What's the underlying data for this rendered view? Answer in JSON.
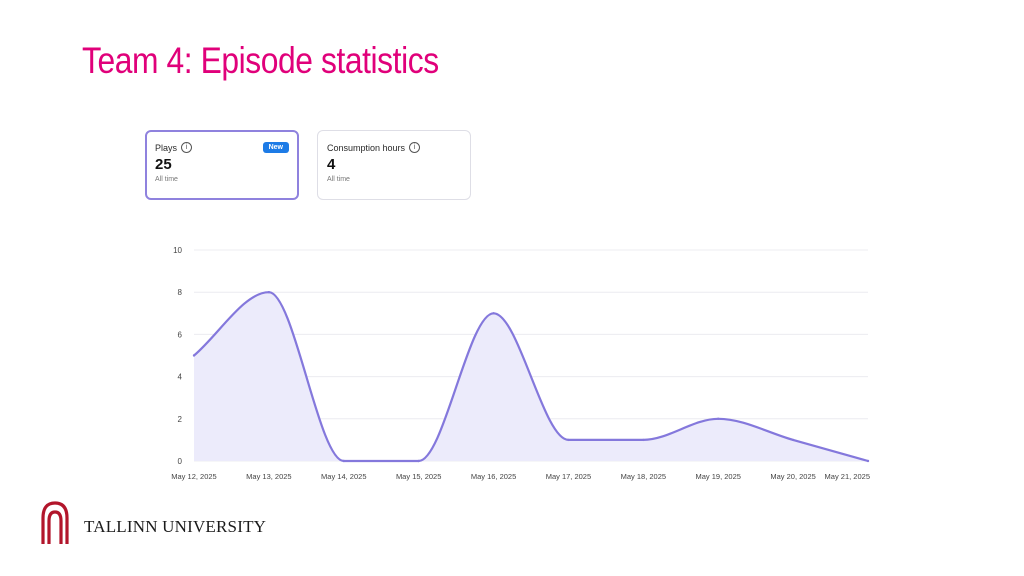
{
  "slide": {
    "title": "Team 4: Episode statistics"
  },
  "cards": [
    {
      "label": "Plays",
      "value": "25",
      "sub": "All time",
      "badge": "New"
    },
    {
      "label": "Consumption hours",
      "value": "4",
      "sub": "All time"
    }
  ],
  "logo": {
    "text": "TALLINN UNIVERSITY",
    "color": "#b2152b"
  },
  "chart_data": {
    "type": "area",
    "title": "",
    "xlabel": "",
    "ylabel": "",
    "categories": [
      "May 12, 2025",
      "May 13, 2025",
      "May 14, 2025",
      "May 15, 2025",
      "May 16, 2025",
      "May 17, 2025",
      "May 18, 2025",
      "May 19, 2025",
      "May 20, 2025",
      "May 21, 2025"
    ],
    "values": [
      5,
      8,
      0,
      0,
      7,
      1,
      1,
      2,
      1,
      0
    ],
    "yticks": [
      "0",
      "2",
      "4",
      "6",
      "8",
      "10"
    ],
    "ylim": [
      0,
      10
    ],
    "grid": true,
    "line_color": "#8478dc",
    "fill_color": "#ecebfb"
  }
}
